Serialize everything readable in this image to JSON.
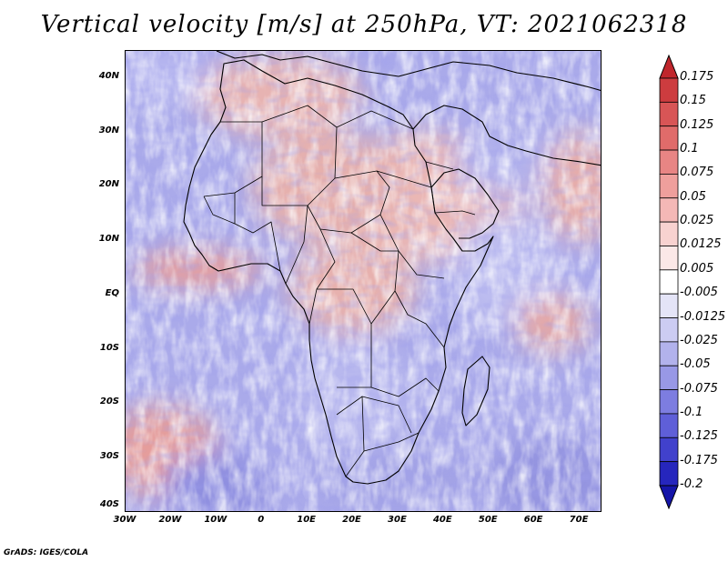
{
  "title": "Vertical velocity [m/s] at 250hPa, VT: 2021062318",
  "map": {
    "projection": "latlon",
    "lon_range": [
      -30,
      75
    ],
    "lat_range": [
      -40,
      45
    ],
    "variable": "vertical velocity",
    "units": "m/s",
    "level": "250hPa",
    "valid_time": "2021062318",
    "lat_ticks": [
      {
        "value": 40,
        "label": "40N"
      },
      {
        "value": 30,
        "label": "30N"
      },
      {
        "value": 20,
        "label": "20N"
      },
      {
        "value": 10,
        "label": "10N"
      },
      {
        "value": 0,
        "label": "EQ"
      },
      {
        "value": -10,
        "label": "10S"
      },
      {
        "value": -20,
        "label": "20S"
      },
      {
        "value": -30,
        "label": "30S"
      },
      {
        "value": -40,
        "label": "40S"
      }
    ],
    "lon_ticks": [
      {
        "value": -30,
        "label": "30W"
      },
      {
        "value": -20,
        "label": "20W"
      },
      {
        "value": -10,
        "label": "10W"
      },
      {
        "value": 0,
        "label": "0"
      },
      {
        "value": 10,
        "label": "10E"
      },
      {
        "value": 20,
        "label": "20E"
      },
      {
        "value": 30,
        "label": "30E"
      },
      {
        "value": 40,
        "label": "40E"
      },
      {
        "value": 50,
        "label": "50E"
      },
      {
        "value": 60,
        "label": "60E"
      },
      {
        "value": 70,
        "label": "70E"
      }
    ]
  },
  "colorbar": {
    "labels": [
      "0.175",
      "0.15",
      "0.125",
      "0.1",
      "0.075",
      "0.05",
      "0.025",
      "0.0125",
      "0.005",
      "-0.005",
      "-0.0125",
      "-0.025",
      "-0.05",
      "-0.075",
      "-0.1",
      "-0.125",
      "-0.175",
      "-0.2"
    ],
    "colors": [
      "#c0262c",
      "#cd3c3f",
      "#d85556",
      "#e06b6a",
      "#e88584",
      "#ef9f9c",
      "#f4b8b6",
      "#f8d2d0",
      "#fbe8e7",
      "#ffffff",
      "#e4e4f7",
      "#ccccf2",
      "#b2b2ec",
      "#9898e6",
      "#7d7de0",
      "#5f5fd8",
      "#4141cc",
      "#2626bd",
      "#1515a8"
    ]
  },
  "credit": "GrADS: IGES/COLA"
}
